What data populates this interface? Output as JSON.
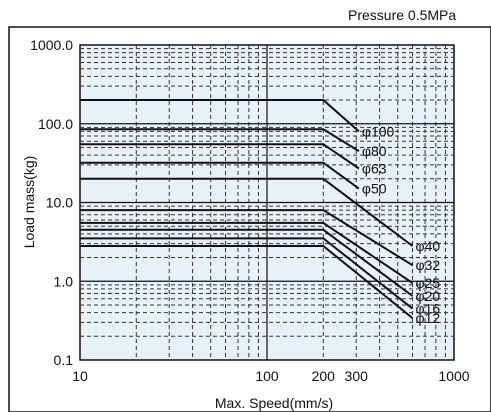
{
  "chart_data": {
    "type": "line",
    "title": "",
    "note": "Pressure 0.5MPa",
    "xlabel": "Max. Speed(mm/s)",
    "ylabel": "Load mass(kg)",
    "xscale": "log",
    "yscale": "log",
    "xlim": [
      10,
      1000
    ],
    "ylim": [
      0.1,
      1000
    ],
    "x_ticks": [
      10,
      100,
      200,
      300,
      1000
    ],
    "x_tick_labels": [
      "10",
      "100",
      "200",
      "300",
      "1000"
    ],
    "y_ticks": [
      0.1,
      1,
      10,
      100,
      1000
    ],
    "y_tick_labels": [
      "0.1",
      "1.0",
      "10.0",
      "100.0",
      "1000.0"
    ],
    "grid": true,
    "series": [
      {
        "name": "φ100",
        "x": [
          10,
          200,
          310
        ],
        "y": [
          200,
          200,
          80
        ]
      },
      {
        "name": "φ80",
        "x": [
          10,
          200,
          310
        ],
        "y": [
          85,
          85,
          45
        ]
      },
      {
        "name": "φ63",
        "x": [
          10,
          200,
          310
        ],
        "y": [
          55,
          55,
          27
        ]
      },
      {
        "name": "φ50",
        "x": [
          10,
          200,
          310
        ],
        "y": [
          32,
          32,
          15
        ]
      },
      {
        "name": "φ40",
        "x": [
          10,
          200,
          600
        ],
        "y": [
          20,
          20,
          2.8
        ]
      },
      {
        "name": "φ32",
        "x": [
          10,
          200,
          600
        ],
        "y": [
          8,
          8,
          1.6
        ]
      },
      {
        "name": "φ25",
        "x": [
          10,
          200,
          600
        ],
        "y": [
          5.5,
          5.5,
          0.95
        ]
      },
      {
        "name": "φ20",
        "x": [
          10,
          200,
          600
        ],
        "y": [
          4.5,
          4.5,
          0.65
        ]
      },
      {
        "name": "φ16",
        "x": [
          10,
          200,
          600
        ],
        "y": [
          3.5,
          3.5,
          0.45
        ]
      },
      {
        "name": "φ12",
        "x": [
          10,
          200,
          600
        ],
        "y": [
          2.8,
          2.8,
          0.34
        ]
      }
    ],
    "colors": {
      "background": "#e8f1f8",
      "line": "#111111",
      "grid": "#333333"
    }
  }
}
